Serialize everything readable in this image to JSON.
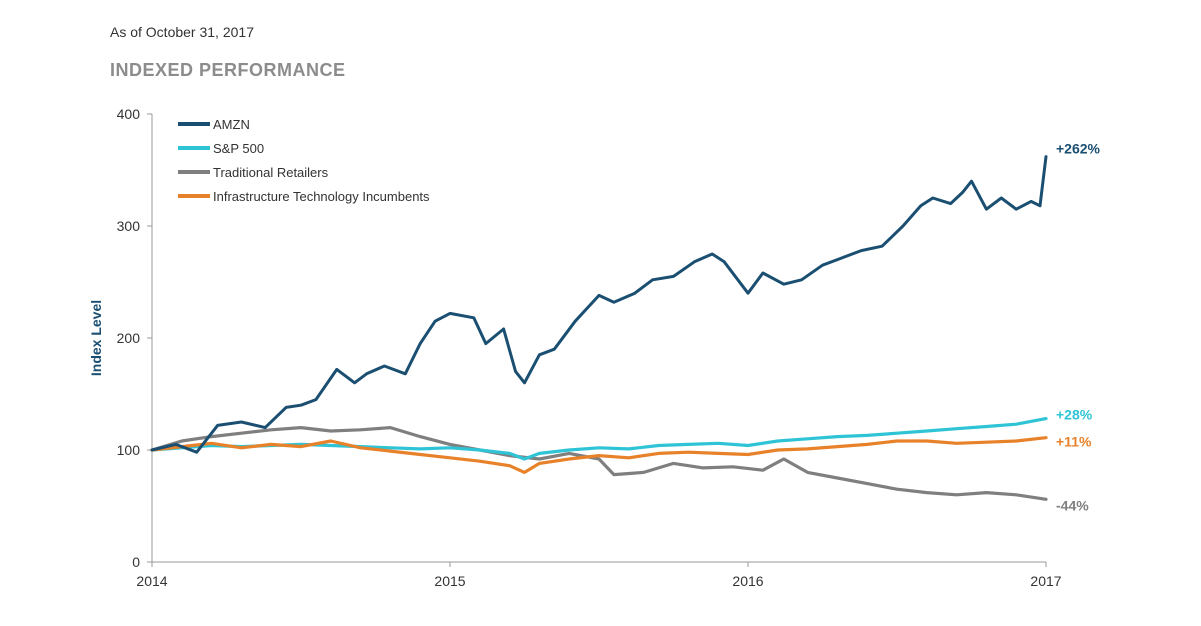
{
  "header": {
    "as_of": "As of October 31, 2017",
    "title": "INDEXED PERFORMANCE"
  },
  "chart_data": {
    "type": "line",
    "ylabel": "Index Level",
    "xlabel": "",
    "ylim": [
      0,
      400
    ],
    "y_ticks": [
      "0",
      "100",
      "200",
      "300",
      "400"
    ],
    "xlim": [
      2014.0,
      2017.0
    ],
    "x_ticks": [
      "2014",
      "2015",
      "2016",
      "2017"
    ],
    "grid": false,
    "legend_position": "top-left",
    "series": [
      {
        "name": "AMZN",
        "color": "#1b4f72",
        "end_label": "+262%",
        "x": [
          2014.0,
          2014.08,
          2014.15,
          2014.22,
          2014.3,
          2014.38,
          2014.45,
          2014.5,
          2014.55,
          2014.62,
          2014.68,
          2014.72,
          2014.78,
          2014.85,
          2014.9,
          2014.95,
          2015.0,
          2015.08,
          2015.12,
          2015.18,
          2015.22,
          2015.25,
          2015.3,
          2015.35,
          2015.42,
          2015.5,
          2015.55,
          2015.62,
          2015.68,
          2015.75,
          2015.82,
          2015.88,
          2015.92,
          2016.0,
          2016.05,
          2016.12,
          2016.18,
          2016.25,
          2016.3,
          2016.38,
          2016.45,
          2016.52,
          2016.58,
          2016.62,
          2016.68,
          2016.72,
          2016.75,
          2016.8,
          2016.85,
          2016.9,
          2016.95,
          2016.98,
          2017.0
        ],
        "y": [
          100,
          105,
          98,
          122,
          125,
          120,
          138,
          140,
          145,
          172,
          160,
          168,
          175,
          168,
          195,
          215,
          222,
          218,
          195,
          208,
          170,
          160,
          185,
          190,
          215,
          238,
          232,
          240,
          252,
          255,
          268,
          275,
          268,
          240,
          258,
          248,
          252,
          265,
          270,
          278,
          282,
          300,
          318,
          325,
          320,
          330,
          340,
          315,
          325,
          315,
          322,
          318,
          362
        ]
      },
      {
        "name": "S&P 500",
        "color": "#2ec4d6",
        "end_label": "+28%",
        "x": [
          2014.0,
          2014.1,
          2014.2,
          2014.3,
          2014.4,
          2014.5,
          2014.6,
          2014.7,
          2014.8,
          2014.9,
          2015.0,
          2015.1,
          2015.2,
          2015.25,
          2015.3,
          2015.4,
          2015.5,
          2015.6,
          2015.7,
          2015.8,
          2015.9,
          2016.0,
          2016.1,
          2016.2,
          2016.3,
          2016.4,
          2016.5,
          2016.6,
          2016.7,
          2016.8,
          2016.9,
          2017.0
        ],
        "y": [
          100,
          102,
          104,
          103,
          104,
          105,
          104,
          103,
          102,
          101,
          102,
          100,
          97,
          92,
          97,
          100,
          102,
          101,
          104,
          105,
          106,
          104,
          108,
          110,
          112,
          113,
          115,
          117,
          119,
          121,
          123,
          128
        ]
      },
      {
        "name": "Traditional Retailers",
        "color": "#7f7f7f",
        "end_label": "-44%",
        "x": [
          2014.0,
          2014.1,
          2014.2,
          2014.3,
          2014.4,
          2014.5,
          2014.6,
          2014.7,
          2014.8,
          2014.9,
          2015.0,
          2015.1,
          2015.2,
          2015.3,
          2015.4,
          2015.5,
          2015.55,
          2015.65,
          2015.75,
          2015.85,
          2015.95,
          2016.05,
          2016.12,
          2016.2,
          2016.3,
          2016.4,
          2016.5,
          2016.6,
          2016.7,
          2016.8,
          2016.9,
          2017.0
        ],
        "y": [
          100,
          108,
          112,
          115,
          118,
          120,
          117,
          118,
          120,
          112,
          105,
          100,
          95,
          92,
          97,
          92,
          78,
          80,
          88,
          84,
          85,
          82,
          92,
          80,
          75,
          70,
          65,
          62,
          60,
          62,
          60,
          56
        ]
      },
      {
        "name": "Infrastructure Technology Incumbents",
        "color": "#e8822a",
        "end_label": "+11%",
        "x": [
          2014.0,
          2014.1,
          2014.2,
          2014.3,
          2014.4,
          2014.5,
          2014.6,
          2014.7,
          2014.8,
          2014.9,
          2015.0,
          2015.1,
          2015.2,
          2015.25,
          2015.3,
          2015.4,
          2015.5,
          2015.6,
          2015.7,
          2015.8,
          2015.9,
          2016.0,
          2016.1,
          2016.2,
          2016.3,
          2016.4,
          2016.5,
          2016.6,
          2016.7,
          2016.8,
          2016.9,
          2017.0
        ],
        "y": [
          100,
          103,
          106,
          102,
          105,
          103,
          108,
          102,
          99,
          96,
          93,
          90,
          86,
          80,
          88,
          92,
          95,
          93,
          97,
          98,
          97,
          96,
          100,
          101,
          103,
          105,
          108,
          108,
          106,
          107,
          108,
          111
        ]
      }
    ]
  }
}
